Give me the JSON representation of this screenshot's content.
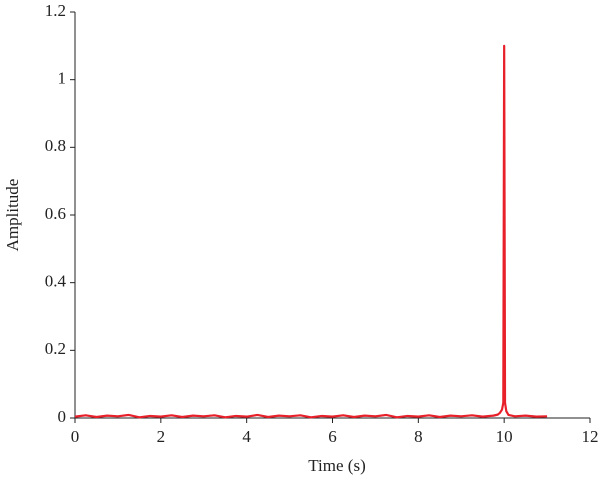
{
  "chart_data": {
    "type": "line",
    "x_label": "Time (s)",
    "y_label": "Amplitude",
    "x": [
      0,
      0.25,
      0.5,
      0.75,
      1,
      1.25,
      1.5,
      1.75,
      2,
      2.25,
      2.5,
      2.75,
      3,
      3.25,
      3.5,
      3.75,
      4,
      4.25,
      4.5,
      4.75,
      5,
      5.25,
      5.5,
      5.75,
      6,
      6.25,
      6.5,
      6.75,
      7,
      7.25,
      7.5,
      7.75,
      8,
      8.25,
      8.5,
      8.75,
      9,
      9.25,
      9.5,
      9.75,
      9.85,
      9.9,
      9.95,
      9.98,
      10,
      10.02,
      10.05,
      10.1,
      10.25,
      10.5,
      10.75,
      11
    ],
    "values": [
      0.004,
      0.008,
      0.003,
      0.007,
      0.005,
      0.009,
      0.002,
      0.006,
      0.004,
      0.008,
      0.003,
      0.007,
      0.005,
      0.008,
      0.002,
      0.006,
      0.004,
      0.009,
      0.003,
      0.007,
      0.005,
      0.008,
      0.002,
      0.006,
      0.004,
      0.008,
      0.003,
      0.007,
      0.005,
      0.009,
      0.002,
      0.006,
      0.004,
      0.008,
      0.003,
      0.007,
      0.005,
      0.008,
      0.004,
      0.007,
      0.01,
      0.015,
      0.025,
      0.045,
      1.1,
      0.045,
      0.02,
      0.009,
      0.005,
      0.007,
      0.004,
      0.005
    ],
    "color": "#e8202a",
    "xlim": [
      0,
      12
    ],
    "ylim": [
      0,
      1.2
    ],
    "xticks": [
      0,
      2,
      4,
      6,
      8,
      10,
      12
    ],
    "yticks": [
      0,
      0.2,
      0.4,
      0.6,
      0.8,
      1,
      1.2
    ],
    "grid": false
  }
}
